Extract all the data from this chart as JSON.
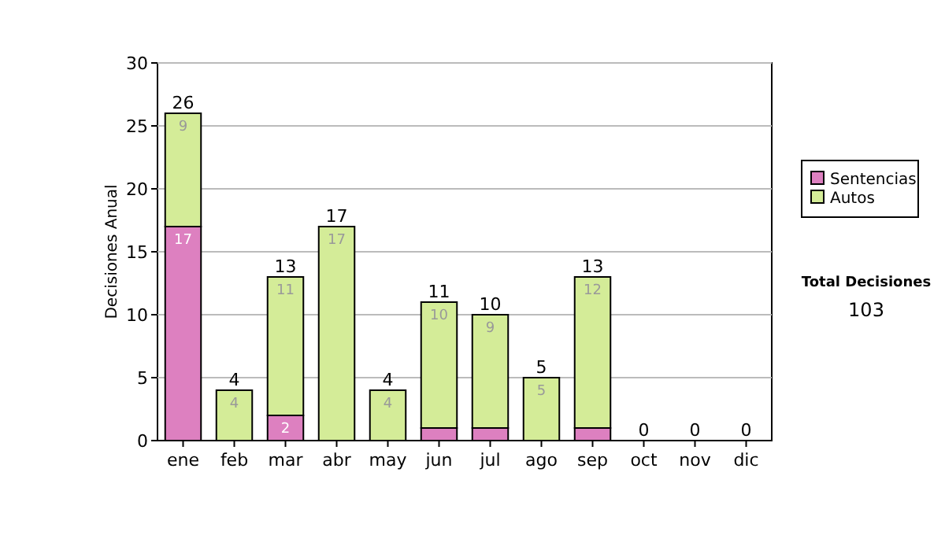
{
  "chart_data": {
    "type": "bar",
    "stacked": true,
    "ylabel": "Decisiones Anual",
    "categories": [
      "ene",
      "feb",
      "mar",
      "abr",
      "may",
      "jun",
      "jul",
      "ago",
      "sep",
      "oct",
      "nov",
      "dic"
    ],
    "series": [
      {
        "name": "Sentencias",
        "color": "#dd80c0",
        "values": [
          17,
          0,
          2,
          0,
          0,
          1,
          1,
          0,
          1,
          0,
          0,
          0
        ],
        "value_labels": [
          "17",
          null,
          "2",
          null,
          null,
          null,
          null,
          null,
          null,
          null,
          null,
          null
        ]
      },
      {
        "name": "Autos",
        "color": "#d4ec98",
        "values": [
          9,
          4,
          11,
          17,
          4,
          10,
          9,
          5,
          12,
          0,
          0,
          0
        ],
        "value_labels": [
          "9",
          "4",
          "11",
          "17",
          "4",
          "10",
          "9",
          "5",
          "12",
          null,
          null,
          null
        ]
      }
    ],
    "totals": [
      "26",
      "4",
      "13",
      "17",
      "4",
      "11",
      "10",
      "5",
      "13",
      "0",
      "0",
      "0"
    ],
    "ylim": [
      0,
      30
    ],
    "yticks": [
      0,
      5,
      10,
      15,
      20,
      25,
      30
    ],
    "grid": "y",
    "legend": "right",
    "annotations": [
      "Total Decisiones",
      "103"
    ]
  }
}
